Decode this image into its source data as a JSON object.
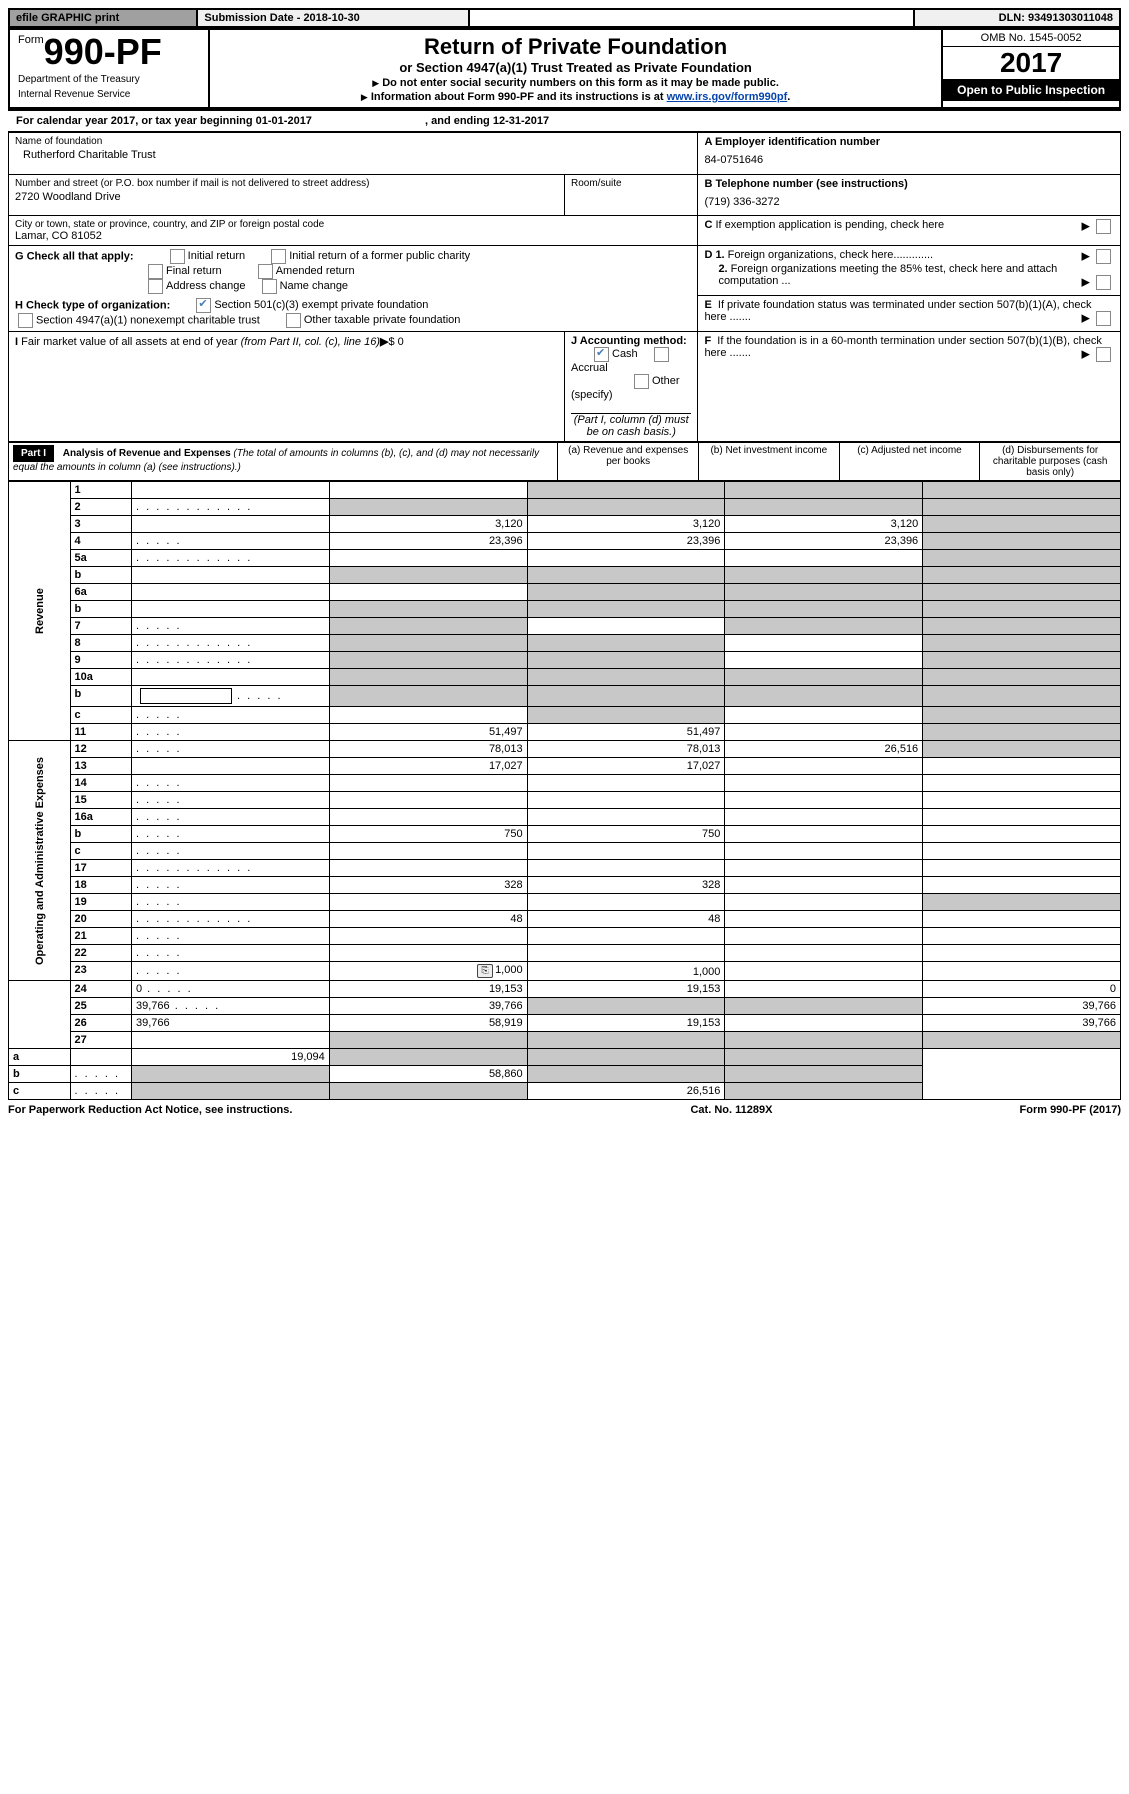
{
  "topbar": {
    "efile": "efile GRAPHIC print",
    "subdate_lbl": "Submission Date - ",
    "subdate": "2018-10-30",
    "dln_lbl": "DLN: ",
    "dln": "93491303011048"
  },
  "header": {
    "form_prefix": "Form",
    "form_no": "990-PF",
    "dept1": "Department of the Treasury",
    "dept2": "Internal Revenue Service",
    "title": "Return of Private Foundation",
    "subtitle": "or Section 4947(a)(1) Trust Treated as Private Foundation",
    "instr1": "Do not enter social security numbers on this form as it may be made public.",
    "instr2_pre": "Information about Form 990-PF and its instructions is at ",
    "instr2_link": "www.irs.gov/form990pf",
    "omb": "OMB No. 1545-0052",
    "year": "2017",
    "inspect": "Open to Public Inspection"
  },
  "cal": {
    "pre": "For calendar year 2017, or tax year beginning ",
    "begin": "01-01-2017",
    "mid": " , and ending ",
    "end": "12-31-2017"
  },
  "id": {
    "name_lbl": "Name of foundation",
    "name": "Rutherford Charitable Trust",
    "addr_lbl": "Number and street (or P.O. box number if mail is not delivered to street address)",
    "room_lbl": "Room/suite",
    "addr": "2720 Woodland Drive",
    "city_lbl": "City or town, state or province, country, and ZIP or foreign postal code",
    "city": "Lamar, CO  81052",
    "a_lbl": "A Employer identification number",
    "a_val": "84-0751646",
    "b_lbl": "B Telephone number (see instructions)",
    "b_val": "(719) 336-3272",
    "c_lbl": "C If exemption application is pending, check here",
    "d1": "D 1. Foreign organizations, check here.............",
    "d2": "2. Foreign organizations meeting the 85% test, check here and attach computation ...",
    "e": "E  If private foundation status was terminated under section 507(b)(1)(A), check here .......",
    "f": "F  If the foundation is in a 60-month termination under section 507(b)(1)(B), check here .......",
    "g_lbl": "G Check all that apply:",
    "g_opts": [
      "Initial return",
      "Initial return of a former public charity",
      "Final return",
      "Amended return",
      "Address change",
      "Name change"
    ],
    "h_lbl": "H Check type of organization:",
    "h1": "Section 501(c)(3) exempt private foundation",
    "h2": "Section 4947(a)(1) nonexempt charitable trust",
    "h3": "Other taxable private foundation",
    "i_lbl": "I Fair market value of all assets at end of year ",
    "i_sub": "(from Part II, col. (c), line 16)",
    "i_val": "$  0",
    "j_lbl": "J Accounting method:",
    "j_cash": "Cash",
    "j_acc": "Accrual",
    "j_other": "Other (specify)",
    "j_note": "(Part I, column (d) must be on cash basis.)"
  },
  "part1": {
    "tag": "Part I",
    "title": "Analysis of Revenue and Expenses",
    "note": "(The total of amounts in columns (b), (c), and (d) may not necessarily equal the amounts in column (a) (see instructions).)",
    "cols": {
      "a": "(a)    Revenue and expenses per books",
      "b": "(b)   Net investment income",
      "c": "(c)   Adjusted net income",
      "d": "(d)   Disbursements for charitable purposes (cash basis only)"
    }
  },
  "sections": {
    "rev": "Revenue",
    "ops": "Operating and Administrative Expenses"
  },
  "rows": [
    {
      "n": "1",
      "d": "",
      "a": "",
      "b": "",
      "c": "",
      "shade": [
        "b",
        "c",
        "d"
      ]
    },
    {
      "n": "2",
      "d": "",
      "dots": true,
      "a": "",
      "b": "",
      "c": "",
      "shade": [
        "a",
        "b",
        "c",
        "d"
      ]
    },
    {
      "n": "3",
      "d": "",
      "a": "3,120",
      "b": "3,120",
      "c": "3,120",
      "shade": [
        "d"
      ]
    },
    {
      "n": "4",
      "d": "",
      "dots_s": true,
      "a": "23,396",
      "b": "23,396",
      "c": "23,396",
      "shade": [
        "d"
      ]
    },
    {
      "n": "5a",
      "d": "",
      "dots": true,
      "a": "",
      "b": "",
      "c": "",
      "shade": [
        "d"
      ]
    },
    {
      "n": "b",
      "d": "",
      "a": "",
      "b": "",
      "c": "",
      "shade": [
        "a",
        "b",
        "c",
        "d"
      ]
    },
    {
      "n": "6a",
      "d": "",
      "a": "",
      "b": "",
      "c": "",
      "shade": [
        "b",
        "c",
        "d"
      ]
    },
    {
      "n": "b",
      "d": "",
      "a": "",
      "b": "",
      "c": "",
      "shade": [
        "a",
        "b",
        "c",
        "d"
      ]
    },
    {
      "n": "7",
      "d": "",
      "dots_s": true,
      "a": "",
      "b": "",
      "c": "",
      "shade": [
        "a",
        "c",
        "d"
      ]
    },
    {
      "n": "8",
      "d": "",
      "dots": true,
      "a": "",
      "b": "",
      "c": "",
      "shade": [
        "a",
        "b",
        "d"
      ]
    },
    {
      "n": "9",
      "d": "",
      "dots": true,
      "a": "",
      "b": "",
      "c": "",
      "shade": [
        "a",
        "b",
        "d"
      ]
    },
    {
      "n": "10a",
      "d": "",
      "a": "",
      "b": "",
      "c": "",
      "shade": [
        "a",
        "b",
        "c",
        "d"
      ]
    },
    {
      "n": "b",
      "d": "",
      "dots_s": true,
      "boxr": true,
      "a": "",
      "b": "",
      "c": "",
      "shade": [
        "a",
        "b",
        "c",
        "d"
      ]
    },
    {
      "n": "c",
      "d": "",
      "dots_s": true,
      "a": "",
      "b": "",
      "c": "",
      "shade": [
        "b",
        "d"
      ]
    },
    {
      "n": "11",
      "d": "",
      "dots_s": true,
      "a": "51,497",
      "b": "51,497",
      "c": "",
      "shade": [
        "d"
      ]
    },
    {
      "n": "12",
      "d": "",
      "dots_s": true,
      "a": "78,013",
      "b": "78,013",
      "c": "26,516",
      "shade": [
        "d"
      ]
    },
    {
      "n": "13",
      "d": "",
      "a": "17,027",
      "b": "17,027",
      "c": ""
    },
    {
      "n": "14",
      "d": "",
      "dots_s": true,
      "a": "",
      "b": "",
      "c": ""
    },
    {
      "n": "15",
      "d": "",
      "dots_s": true,
      "a": "",
      "b": "",
      "c": ""
    },
    {
      "n": "16a",
      "d": "",
      "dots_s": true,
      "a": "",
      "b": "",
      "c": ""
    },
    {
      "n": "b",
      "d": "",
      "dots_s": true,
      "a": "750",
      "b": "750",
      "c": ""
    },
    {
      "n": "c",
      "d": "",
      "dots_s": true,
      "a": "",
      "b": "",
      "c": ""
    },
    {
      "n": "17",
      "d": "",
      "dots": true,
      "a": "",
      "b": "",
      "c": ""
    },
    {
      "n": "18",
      "d": "",
      "dots_s": true,
      "a": "328",
      "b": "328",
      "c": ""
    },
    {
      "n": "19",
      "d": "",
      "dots_s": true,
      "a": "",
      "b": "",
      "c": "",
      "shade": [
        "d"
      ]
    },
    {
      "n": "20",
      "d": "",
      "dots": true,
      "a": "48",
      "b": "48",
      "c": ""
    },
    {
      "n": "21",
      "d": "",
      "dots_s": true,
      "a": "",
      "b": "",
      "c": ""
    },
    {
      "n": "22",
      "d": "",
      "dots_s": true,
      "a": "",
      "b": "",
      "c": ""
    },
    {
      "n": "23",
      "d": "",
      "dots_s": true,
      "icon": true,
      "a": "1,000",
      "b": "1,000",
      "c": ""
    },
    {
      "n": "24",
      "d": "0",
      "dots_s": true,
      "a": "19,153",
      "b": "19,153",
      "c": ""
    },
    {
      "n": "25",
      "d": "39,766",
      "dots_s": true,
      "a": "39,766",
      "b": "",
      "c": "",
      "shade": [
        "b",
        "c"
      ]
    },
    {
      "n": "26",
      "d": "39,766",
      "a": "58,919",
      "b": "19,153",
      "c": ""
    },
    {
      "n": "27",
      "d": "",
      "a": "",
      "b": "",
      "c": "",
      "shade": [
        "a",
        "b",
        "c",
        "d"
      ]
    },
    {
      "n": "a",
      "d": "",
      "a": "19,094",
      "b": "",
      "c": "",
      "shade": [
        "b",
        "c",
        "d"
      ]
    },
    {
      "n": "b",
      "d": "",
      "dots_s": true,
      "a": "",
      "b": "58,860",
      "c": "",
      "shade": [
        "a",
        "c",
        "d"
      ]
    },
    {
      "n": "c",
      "d": "",
      "dots_s": true,
      "a": "",
      "b": "",
      "c": "26,516",
      "shade": [
        "a",
        "b",
        "d"
      ]
    }
  ],
  "footer": {
    "left": "For Paperwork Reduction Act Notice, see instructions.",
    "mid": "Cat. No. 11289X",
    "right": "Form 990-PF (2017)"
  },
  "colors": {
    "shade": "#c8c8c8",
    "link": "#0645ad"
  }
}
